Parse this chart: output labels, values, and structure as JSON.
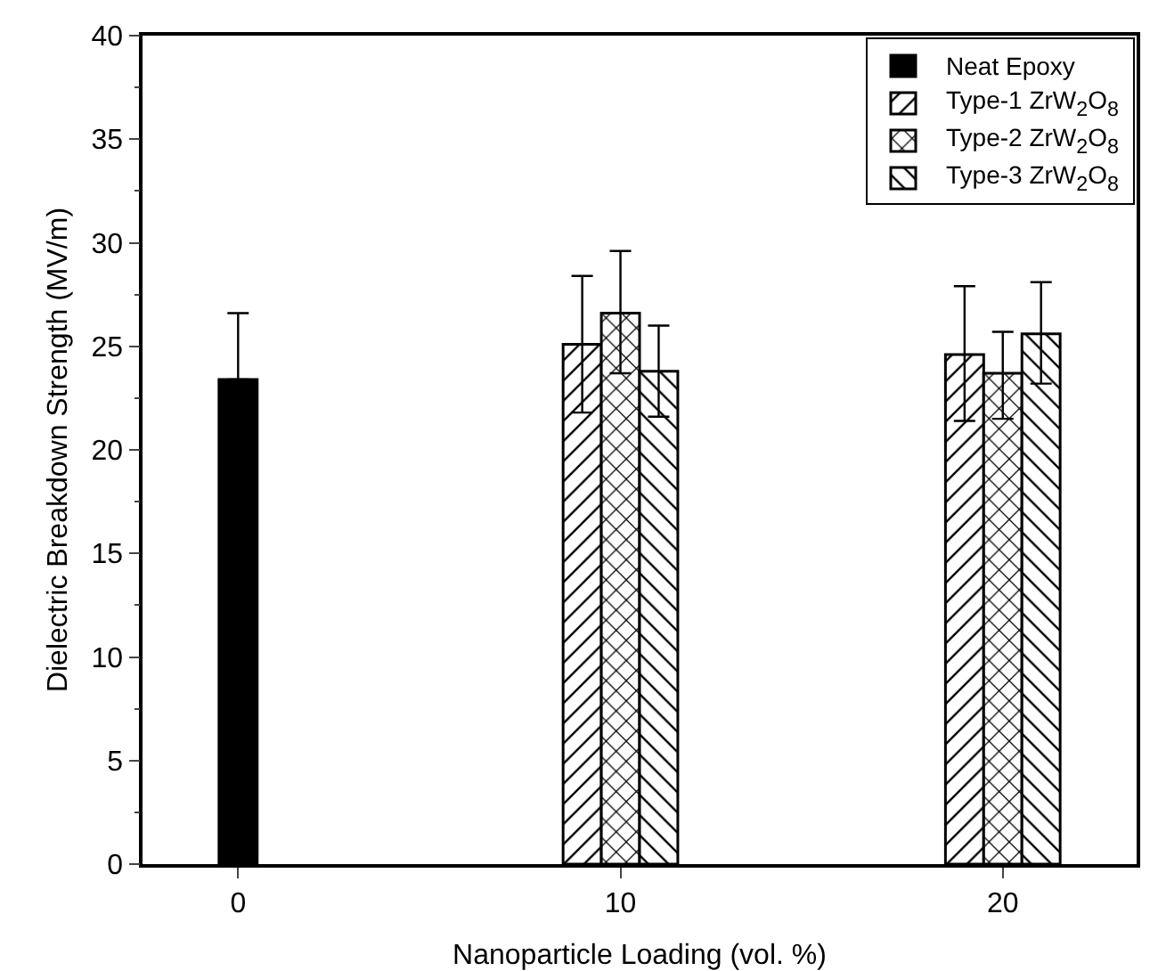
{
  "chart_data": {
    "type": "bar",
    "xlabel": "Nanoparticle Loading (vol. %)",
    "ylabel": "Dielectric Breakdown Strength (MV/m)",
    "categories": [
      "0",
      "10",
      "20"
    ],
    "series": [
      {
        "name": "Neat Epoxy",
        "color": "#000000",
        "values": [
          23.4,
          null,
          null
        ],
        "errors": [
          [
            23.4,
            26.6
          ],
          null,
          null
        ]
      },
      {
        "name": "Type-1 ZrW$_{2}$O$_{8}$",
        "color": "#000000",
        "values": [
          null,
          25.1,
          24.6
        ],
        "errors": [
          null,
          [
            21.8,
            28.4
          ],
          [
            21.4,
            27.9
          ]
        ]
      },
      {
        "name": "Type-2 ZrW$_{2}$O$_{8}$",
        "color": "#000000",
        "values": [
          null,
          26.6,
          23.7
        ],
        "errors": [
          null,
          [
            23.7,
            29.6
          ],
          [
            21.5,
            25.7
          ]
        ]
      },
      {
        "name": "Type-3 ZrW$_{2}$O$_{8}$",
        "color": "#000000",
        "values": [
          null,
          23.8,
          25.6
        ],
        "errors": [
          null,
          [
            21.6,
            26.0
          ],
          [
            23.2,
            28.1
          ]
        ]
      }
    ],
    "ylim": [
      0,
      40
    ],
    "yticks": [
      0,
      5,
      10,
      15,
      20,
      25,
      30,
      35,
      40
    ],
    "grid": false,
    "legend": "top right"
  }
}
